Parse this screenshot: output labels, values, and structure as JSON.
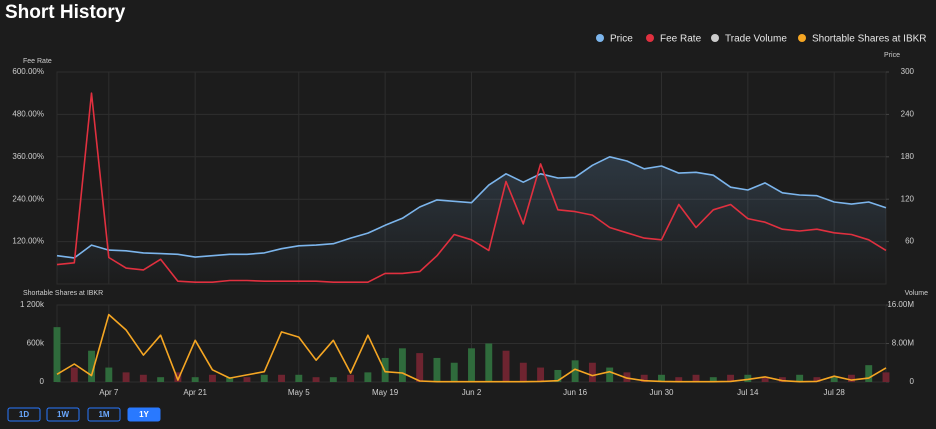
{
  "title": "Short History",
  "ranges": [
    "1D",
    "1W",
    "1M",
    "1Y"
  ],
  "active_range": 3,
  "chart_data": [
    {
      "type": "line",
      "ylabel": "Fee Rate",
      "y2label": "Price",
      "ylim": [
        0,
        600
      ],
      "yticks": [
        {
          "value": 120,
          "label": "120.00%"
        },
        {
          "value": 240,
          "label": "240.00%"
        },
        {
          "value": 360,
          "label": "360.00%"
        },
        {
          "value": 480,
          "label": "480.00%"
        },
        {
          "value": 600,
          "label": "600.00%"
        }
      ],
      "y2lim": [
        0,
        300
      ],
      "y2ticks": [
        60,
        120,
        180,
        240,
        300
      ],
      "grid": true,
      "series": [
        {
          "name": "Price",
          "color": "#7cb5ec",
          "axis": "y2",
          "values": [
            40,
            37,
            55,
            48,
            47,
            44,
            43,
            42,
            38,
            40,
            42,
            42,
            44,
            50,
            54,
            55,
            57,
            65,
            72,
            83,
            93,
            109,
            119,
            117,
            115,
            140,
            156,
            144,
            156,
            150,
            151,
            168,
            180,
            174,
            163,
            167,
            157,
            158,
            154,
            137,
            133,
            143,
            129,
            126,
            125,
            116,
            113,
            116,
            108
          ]
        },
        {
          "name": "Fee Rate",
          "color": "#e0303f",
          "values": [
            55,
            60,
            540,
            75,
            45,
            40,
            70,
            8,
            5,
            5,
            10,
            10,
            8,
            8,
            8,
            8,
            5,
            5,
            5,
            30,
            30,
            35,
            80,
            140,
            125,
            95,
            290,
            170,
            340,
            210,
            205,
            195,
            160,
            145,
            130,
            125,
            225,
            160,
            210,
            225,
            185,
            175,
            155,
            150,
            155,
            145,
            140,
            125,
            95
          ]
        }
      ]
    },
    {
      "type": "bar-line",
      "ylabel": "Shortable Shares at IBKR",
      "y2label": "Volume",
      "categories": [
        null,
        null,
        null,
        "Apr 7",
        null,
        null,
        null,
        null,
        "Apr 21",
        null,
        null,
        null,
        null,
        null,
        "May 5",
        null,
        null,
        null,
        null,
        "May 19",
        null,
        null,
        null,
        null,
        "Jun 2",
        null,
        null,
        null,
        null,
        null,
        "Jun 16",
        null,
        null,
        null,
        null,
        "Jun 30",
        null,
        null,
        null,
        null,
        "Jul 14",
        null,
        null,
        null,
        null,
        "Jul 28",
        null,
        null,
        null
      ],
      "ylim": [
        0,
        1200000
      ],
      "yticks": [
        0,
        {
          "value": 600000,
          "label": "600k"
        },
        {
          "value": 1200000,
          "label": "1 200k"
        }
      ],
      "y2lim": [
        0,
        16000000
      ],
      "y2ticks": [
        0,
        {
          "value": 8000000,
          "label": "8.00M"
        },
        {
          "value": 16000000,
          "label": "16.00M"
        }
      ],
      "grid": true,
      "series": [
        {
          "name": "Trade Volume",
          "color": "#cccccc",
          "axis": "y2",
          "colors": [
            "#2f6b3c",
            "#6e2430",
            "#2f6b3c",
            "#2f6b3c",
            "#6e2430",
            "#6e2430",
            "#2f6b3c",
            "#6e2430",
            "#2f6b3c",
            "#6e2430",
            "#2f6b3c",
            "#6e2430",
            "#2f6b3c",
            "#6e2430",
            "#2f6b3c",
            "#6e2430",
            "#2f6b3c",
            "#6e2430",
            "#2f6b3c",
            "#2f6b3c",
            "#2f6b3c",
            "#6e2430",
            "#2f6b3c",
            "#2f6b3c",
            "#2f6b3c",
            "#2f6b3c",
            "#6e2430",
            "#6e2430",
            "#6e2430",
            "#2f6b3c",
            "#2f6b3c",
            "#6e2430",
            "#2f6b3c",
            "#6e2430",
            "#6e2430",
            "#2f6b3c",
            "#6e2430",
            "#6e2430",
            "#2f6b3c",
            "#6e2430",
            "#2f6b3c",
            "#6e2430",
            "#6e2430",
            "#2f6b3c",
            "#6e2430",
            "#2f6b3c",
            "#6e2430",
            "#2f6b3c",
            "#6e2430"
          ],
          "values": [
            11400000,
            3000000,
            6500000,
            3000000,
            2000000,
            1500000,
            1000000,
            2000000,
            1000000,
            1500000,
            1000000,
            1000000,
            1500000,
            1500000,
            1500000,
            1000000,
            1000000,
            1500000,
            2000000,
            5000000,
            7000000,
            6000000,
            5000000,
            4000000,
            7000000,
            8000000,
            6500000,
            4000000,
            3000000,
            2500000,
            4500000,
            4000000,
            3000000,
            2000000,
            1500000,
            1500000,
            1000000,
            1500000,
            1000000,
            1500000,
            1500000,
            1000000,
            1000000,
            1500000,
            1000000,
            1000000,
            1500000,
            3500000,
            2000000
          ]
        },
        {
          "name": "Shortable Shares at IBKR",
          "color": "#f5a623",
          "values": [
            120000,
            280000,
            100000,
            1050000,
            810000,
            420000,
            730000,
            30000,
            650000,
            190000,
            60000,
            110000,
            160000,
            780000,
            700000,
            340000,
            650000,
            140000,
            730000,
            160000,
            140000,
            15000,
            5000,
            5000,
            5000,
            5000,
            5000,
            5000,
            10000,
            20000,
            200000,
            100000,
            160000,
            60000,
            20000,
            10000,
            5000,
            5000,
            5000,
            10000,
            40000,
            80000,
            20000,
            5000,
            10000,
            90000,
            30000,
            60000,
            220000
          ]
        }
      ]
    }
  ]
}
